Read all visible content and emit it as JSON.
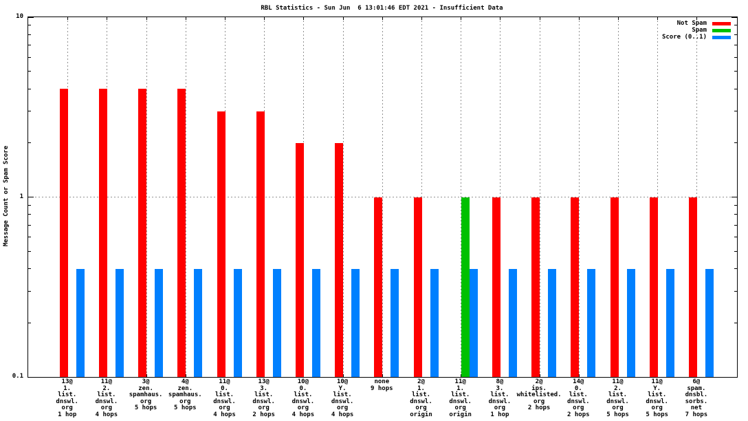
{
  "chart_data": {
    "type": "bar",
    "title": "RBL Statistics - Sun Jun  6 13:01:46 EDT 2021 - Insufficient Data",
    "ylabel": "Message Count or Spam Score",
    "xlabel": "",
    "y_scale": "log10",
    "ylim": [
      0.1,
      10
    ],
    "y_ticks": [
      {
        "label": "10",
        "value": 10
      },
      {
        "label": "1",
        "value": 1
      },
      {
        "label": "0.1",
        "value": 0.1
      }
    ],
    "grid": true,
    "legend_position": "top-right",
    "legend": [
      {
        "label": "Not Spam",
        "color": "#ff0000"
      },
      {
        "label": "Spam",
        "color": "#00c000"
      },
      {
        "label": "Score (0..1)",
        "color": "#0080ff"
      }
    ],
    "categories": [
      [
        "13@",
        "1.",
        "list.",
        "dnswl.",
        "org",
        "1 hop"
      ],
      [
        "11@",
        "2.",
        "list.",
        "dnswl.",
        "org",
        "4 hops"
      ],
      [
        "3@",
        "zen.",
        "spamhaus.",
        "org",
        "5 hops"
      ],
      [
        "4@",
        "zen.",
        "spamhaus.",
        "org",
        "5 hops"
      ],
      [
        "11@",
        "0.",
        "list.",
        "dnswl.",
        "org",
        "4 hops"
      ],
      [
        "13@",
        "3.",
        "list.",
        "dnswl.",
        "org",
        "2 hops"
      ],
      [
        "10@",
        "0.",
        "list.",
        "dnswl.",
        "org",
        "4 hops"
      ],
      [
        "10@",
        "Y.",
        "list.",
        "dnswl.",
        "org",
        "4 hops"
      ],
      [
        "none",
        "9 hops"
      ],
      [
        "2@",
        "1.",
        "list.",
        "dnswl.",
        "org",
        "origin"
      ],
      [
        "11@",
        "1.",
        "list.",
        "dnswl.",
        "org",
        "origin"
      ],
      [
        "8@",
        "3.",
        "list.",
        "dnswl.",
        "org",
        "1 hop"
      ],
      [
        "2@",
        "ips.",
        "whitelisted.",
        "org",
        "2 hops"
      ],
      [
        "14@",
        "0.",
        "list.",
        "dnswl.",
        "org",
        "2 hops"
      ],
      [
        "11@",
        "2.",
        "list.",
        "dnswl.",
        "org",
        "5 hops"
      ],
      [
        "11@",
        "Y.",
        "list.",
        "dnswl.",
        "org",
        "5 hops"
      ],
      [
        "6@",
        "spam.",
        "dnsbl.",
        "sorbs.",
        "net",
        "7 hops"
      ]
    ],
    "series": [
      {
        "name": "Not Spam",
        "color": "#ff0000",
        "values": [
          4,
          4,
          4,
          4,
          3,
          3,
          2,
          2,
          1,
          1,
          0,
          1,
          1,
          1,
          1,
          1,
          1
        ]
      },
      {
        "name": "Spam",
        "color": "#00c000",
        "values": [
          0,
          0,
          0,
          0,
          0,
          0,
          0,
          0,
          0,
          0,
          1,
          0,
          0,
          0,
          0,
          0,
          0
        ]
      },
      {
        "name": "Score (0..1)",
        "color": "#0080ff",
        "values": [
          0.4,
          0.4,
          0.4,
          0.4,
          0.4,
          0.4,
          0.4,
          0.4,
          0.4,
          0.4,
          0.4,
          0.4,
          0.4,
          0.4,
          0.4,
          0.4,
          0.4
        ]
      }
    ]
  }
}
